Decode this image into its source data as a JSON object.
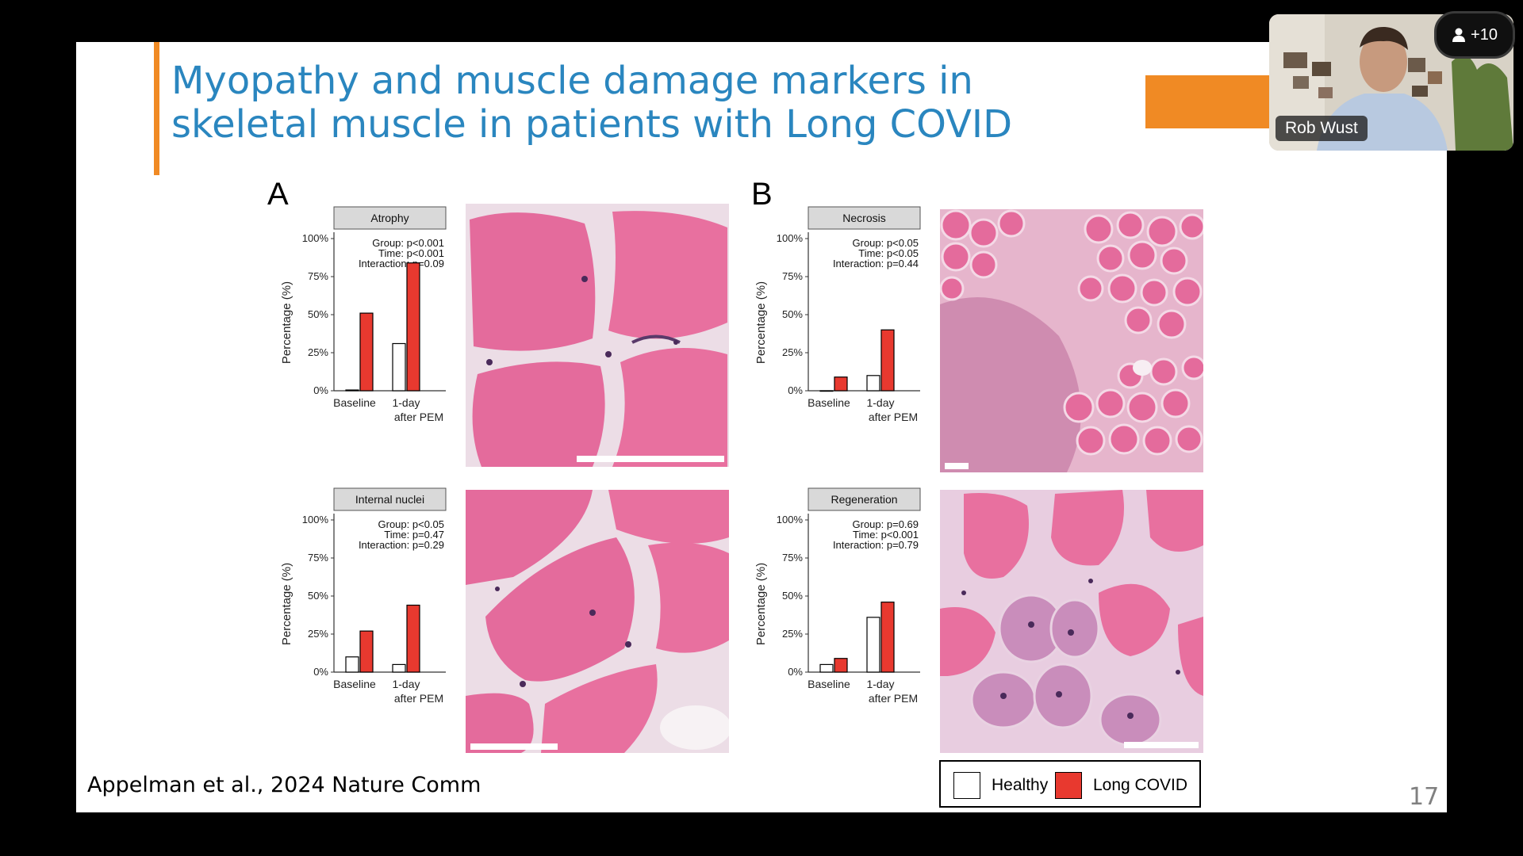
{
  "slide": {
    "title_line1": "Myopathy and muscle damage markers in",
    "title_line2": "skeletal muscle in patients with Long COVID",
    "citation": "Appelman et al., 2024 Nature Comm",
    "page_number": "17",
    "panel_a": "A",
    "panel_b": "B",
    "legend": {
      "healthy": "Healthy",
      "long_covid": "Long COVID"
    }
  },
  "video": {
    "participant_name": "Rob Wust",
    "participants_count": "+10",
    "participants_icon": "person-icon"
  },
  "colors": {
    "long_covid": "#e8392f",
    "healthy": "#ffffff",
    "title": "#2a86bf",
    "accent": "#f08a24",
    "tissue": "#e66a9a"
  },
  "chart_data": [
    {
      "type": "bar",
      "title": "Atrophy",
      "ylabel": "Percentage (%)",
      "ylim": [
        0,
        100
      ],
      "yticks": [
        "0%",
        "25%",
        "50%",
        "75%",
        "100%"
      ],
      "categories": [
        "Baseline",
        "1-day after PEM"
      ],
      "stats": [
        "Group: p<0.001",
        "Time: p<0.001",
        "Interaction: p=0.09"
      ],
      "series": [
        {
          "name": "Healthy",
          "values": [
            0.5,
            31
          ]
        },
        {
          "name": "Long COVID",
          "values": [
            51,
            84
          ]
        }
      ]
    },
    {
      "type": "bar",
      "title": "Internal nuclei",
      "ylabel": "Percentage (%)",
      "ylim": [
        0,
        100
      ],
      "yticks": [
        "0%",
        "25%",
        "50%",
        "75%",
        "100%"
      ],
      "categories": [
        "Baseline",
        "1-day after PEM"
      ],
      "stats": [
        "Group: p<0.05",
        "Time: p=0.47",
        "Interaction: p=0.29"
      ],
      "series": [
        {
          "name": "Healthy",
          "values": [
            10,
            5
          ]
        },
        {
          "name": "Long COVID",
          "values": [
            27,
            44
          ]
        }
      ]
    },
    {
      "type": "bar",
      "title": "Necrosis",
      "ylabel": "Percentage (%)",
      "ylim": [
        0,
        100
      ],
      "yticks": [
        "0%",
        "25%",
        "50%",
        "75%",
        "100%"
      ],
      "categories": [
        "Baseline",
        "1-day after PEM"
      ],
      "stats": [
        "Group: p<0.05",
        "Time: p<0.05",
        "Interaction: p=0.44"
      ],
      "series": [
        {
          "name": "Healthy",
          "values": [
            0,
            10
          ]
        },
        {
          "name": "Long COVID",
          "values": [
            9,
            40
          ]
        }
      ]
    },
    {
      "type": "bar",
      "title": "Regeneration",
      "ylabel": "Percentage (%)",
      "ylim": [
        0,
        100
      ],
      "yticks": [
        "0%",
        "25%",
        "50%",
        "75%",
        "100%"
      ],
      "categories": [
        "Baseline",
        "1-day after PEM"
      ],
      "stats": [
        "Group: p=0.69",
        "Time: p<0.001",
        "Interaction: p=0.79"
      ],
      "series": [
        {
          "name": "Healthy",
          "values": [
            5,
            36
          ]
        },
        {
          "name": "Long COVID",
          "values": [
            9,
            46
          ]
        }
      ]
    }
  ]
}
